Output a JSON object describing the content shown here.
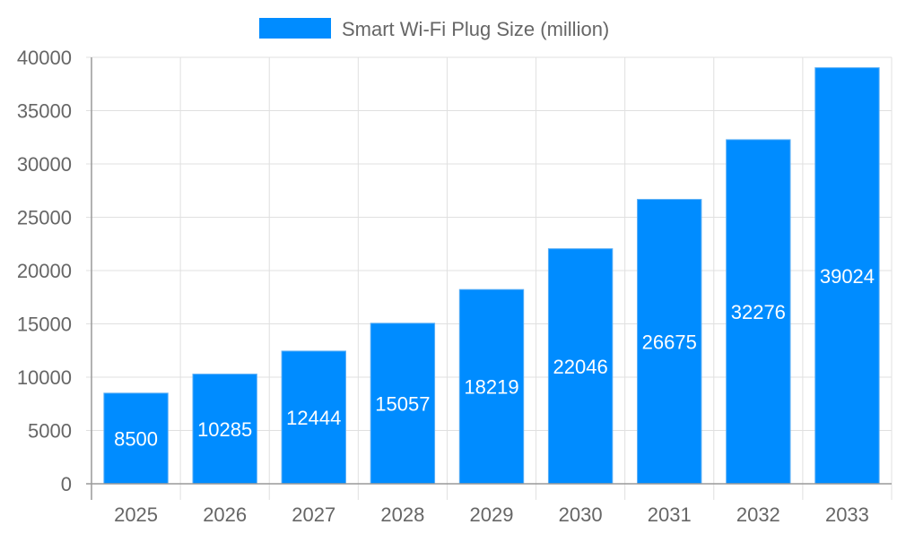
{
  "chart_data": {
    "type": "bar",
    "title": "",
    "xlabel": "",
    "ylabel": "",
    "categories": [
      "2025",
      "2026",
      "2027",
      "2028",
      "2029",
      "2030",
      "2031",
      "2032",
      "2033"
    ],
    "series": [
      {
        "name": "Smart Wi-Fi Plug Size (million)",
        "values": [
          8500,
          10285,
          12444,
          15057,
          18219,
          22046,
          26675,
          32276,
          39024
        ],
        "color": "#008cff"
      }
    ],
    "ylim": [
      0,
      40000
    ],
    "yticks": [
      "0",
      "5000",
      "10000",
      "15000",
      "20000",
      "25000",
      "30000",
      "35000",
      "40000"
    ],
    "grid": true,
    "legend": "top-center",
    "data_labels": "inside-center"
  }
}
